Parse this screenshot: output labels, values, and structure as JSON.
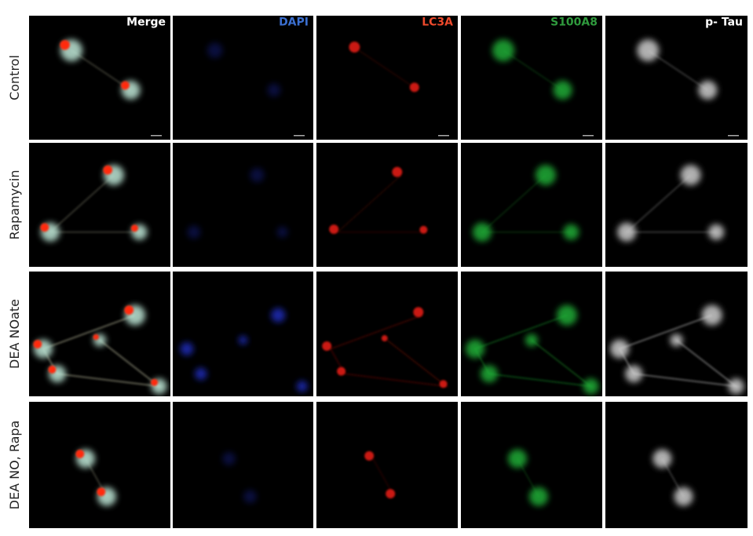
{
  "columns": [
    "Merge",
    "DAPI",
    "LC3A",
    "S100A8",
    "p- Tau"
  ],
  "rows": [
    "Control",
    "Rapamycin",
    "DEA NOate",
    "DEA NO, Rapa"
  ]
}
